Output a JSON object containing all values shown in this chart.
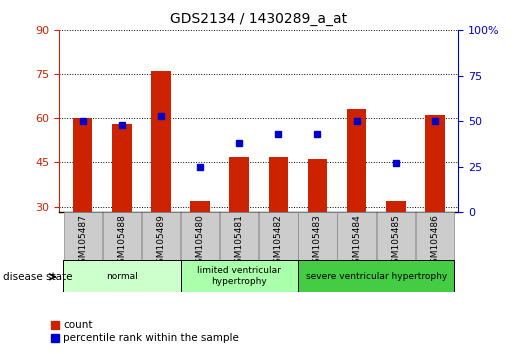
{
  "title": "GDS2134 / 1430289_a_at",
  "samples": [
    "GSM105487",
    "GSM105488",
    "GSM105489",
    "GSM105480",
    "GSM105481",
    "GSM105482",
    "GSM105483",
    "GSM105484",
    "GSM105485",
    "GSM105486"
  ],
  "counts": [
    60,
    58,
    76,
    32,
    47,
    47,
    46,
    63,
    32,
    61
  ],
  "percentile_ranks": [
    50,
    48,
    53,
    25,
    38,
    43,
    43,
    50,
    27,
    50
  ],
  "ylim_left": [
    28,
    90
  ],
  "ylim_right": [
    0,
    100
  ],
  "yticks_left": [
    30,
    45,
    60,
    75,
    90
  ],
  "yticks_right": [
    0,
    25,
    50,
    75,
    100
  ],
  "groups": [
    {
      "label": "normal",
      "indices": [
        0,
        1,
        2
      ],
      "color": "#ccffcc"
    },
    {
      "label": "limited ventricular\nhypertrophy",
      "indices": [
        3,
        4,
        5
      ],
      "color": "#aaffaa"
    },
    {
      "label": "severe ventricular hypertrophy",
      "indices": [
        6,
        7,
        8,
        9
      ],
      "color": "#44cc44"
    }
  ],
  "bar_color": "#cc2200",
  "dot_color": "#0000cc",
  "bar_width": 0.5,
  "label_count": "count",
  "label_percentile": "percentile rank within the sample",
  "disease_state_label": "disease state",
  "left_tick_color": "#cc2200",
  "right_tick_color": "#0000cc",
  "tick_label_bg": "#cccccc"
}
